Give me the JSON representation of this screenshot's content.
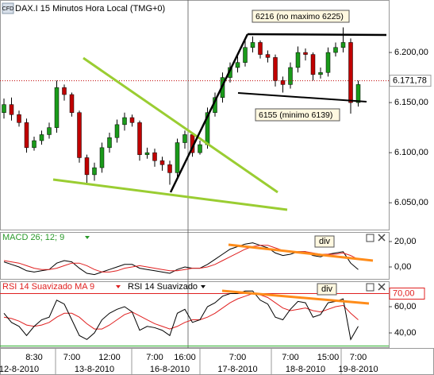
{
  "chart_data": [
    {
      "type": "candlestick",
      "logo": "CFD",
      "title": "DAX.I 15 Minutos Hora Local (TMG+0)",
      "categories": [
        null,
        null,
        null,
        null,
        "8:30",
        null,
        null,
        null,
        null,
        "7:00",
        null,
        null,
        null,
        null,
        "12:00",
        null,
        null,
        null,
        null,
        null,
        "7:00",
        null,
        null,
        null,
        "16:00",
        null,
        null,
        null,
        null,
        null,
        null,
        "7:00",
        null,
        null,
        null,
        null,
        null,
        null,
        "7:00",
        null,
        null,
        null,
        null,
        "15:00",
        null,
        null,
        null,
        "7:00"
      ],
      "dates": [
        null,
        null,
        "12-8-2010",
        null,
        null,
        null,
        null,
        null,
        null,
        null,
        null,
        null,
        "13-8-2010",
        null,
        null,
        null,
        null,
        null,
        null,
        null,
        null,
        null,
        "16-8-2010",
        null,
        null,
        null,
        null,
        null,
        null,
        null,
        null,
        "17-8-2010",
        null,
        null,
        null,
        null,
        null,
        null,
        null,
        null,
        "18-8-2010",
        null,
        null,
        null,
        null,
        null,
        null,
        "19-8-2010"
      ],
      "open": [
        6140,
        6148,
        6138,
        6130,
        6105,
        6112,
        6118,
        6125,
        6165,
        6158,
        6140,
        6095,
        6078,
        6085,
        6105,
        6115,
        6128,
        6135,
        6130,
        6098,
        6100,
        6092,
        6088,
        6080,
        6110,
        6118,
        6100,
        6108,
        6140,
        6155,
        6175,
        6185,
        6190,
        6205,
        6210,
        6198,
        6195,
        6172,
        6168,
        6185,
        6200,
        6198,
        6178,
        6180,
        6200,
        6205,
        6210,
        6150
      ],
      "high": [
        6154,
        6155,
        6142,
        6134,
        6116,
        6122,
        6130,
        6172,
        6168,
        6160,
        6142,
        6098,
        6090,
        6110,
        6120,
        6133,
        6140,
        6138,
        6132,
        6105,
        6104,
        6096,
        6092,
        6114,
        6122,
        6120,
        6112,
        6145,
        6160,
        6180,
        6190,
        6196,
        6212,
        6216,
        6212,
        6202,
        6198,
        6176,
        6190,
        6206,
        6204,
        6200,
        6185,
        6205,
        6210,
        6225,
        6214,
        6172
      ],
      "low": [
        6134,
        6132,
        6126,
        6100,
        6102,
        6108,
        6114,
        6120,
        6152,
        6136,
        6090,
        6070,
        6072,
        6080,
        6100,
        6110,
        6122,
        6126,
        6092,
        6094,
        6086,
        6082,
        6068,
        6076,
        6104,
        6096,
        6098,
        6104,
        6136,
        6150,
        6170,
        6180,
        6186,
        6200,
        6194,
        6190,
        6166,
        6160,
        6164,
        6180,
        6192,
        6172,
        6174,
        6176,
        6196,
        6200,
        6139,
        6146
      ],
      "close": [
        6148,
        6138,
        6130,
        6105,
        6112,
        6118,
        6125,
        6165,
        6158,
        6140,
        6095,
        6078,
        6085,
        6105,
        6115,
        6128,
        6135,
        6130,
        6098,
        6100,
        6092,
        6088,
        6080,
        6110,
        6118,
        6100,
        6108,
        6140,
        6155,
        6175,
        6185,
        6190,
        6205,
        6210,
        6198,
        6195,
        6172,
        6168,
        6185,
        6200,
        6198,
        6178,
        6180,
        6200,
        6205,
        6210,
        6150,
        6168
      ],
      "up_color": "#1a9a1a",
      "down_color": "#c00000",
      "ylim": [
        6024,
        6250
      ],
      "yticks": [
        {
          "value": 6050,
          "label": "6.050,00"
        },
        {
          "value": 6100,
          "label": "6.100,00"
        },
        {
          "value": 6150,
          "label": "6.150,00"
        },
        {
          "value": 6200,
          "label": "6.200,00"
        }
      ],
      "last_price": {
        "value": 6171.78,
        "label": "6.171,78"
      },
      "annotations": [
        "6216 (no maximo 6225)",
        "6155 (minimo 6139)"
      ]
    },
    {
      "type": "line",
      "title": "MACD 26; 12; 9",
      "annotation": "div",
      "series": [
        {
          "color": "#000000",
          "values": [
            4,
            2,
            0,
            -3,
            -4,
            -3,
            -2,
            3,
            5,
            4,
            -1,
            -5,
            -6,
            -4,
            -2,
            0,
            2,
            2,
            -1,
            -2,
            -3,
            -4,
            -5,
            -2,
            0,
            -1,
            -1,
            2,
            6,
            10,
            14,
            16,
            18,
            19,
            17,
            15,
            11,
            9,
            10,
            12,
            12,
            9,
            8,
            10,
            11,
            12,
            3,
            -2
          ]
        },
        {
          "color": "#e02020",
          "values": [
            5,
            4,
            3,
            1,
            -1,
            -2,
            -2,
            -1,
            1,
            3,
            3,
            1,
            -2,
            -4,
            -4,
            -3,
            -1,
            0,
            1,
            0,
            -1,
            -2,
            -3,
            -3,
            -2,
            -1,
            -1,
            0,
            2,
            5,
            8,
            11,
            14,
            16,
            17,
            17,
            15,
            13,
            12,
            12,
            12,
            11,
            10,
            10,
            10,
            11,
            9,
            6
          ]
        }
      ],
      "ylim": [
        -10,
        27.5
      ],
      "yticks": [
        {
          "value": 0,
          "label": "0,00"
        },
        {
          "value": 20,
          "label": "20,00"
        }
      ]
    },
    {
      "type": "line",
      "annotation": "div",
      "series": [
        {
          "name": "RSI 14 Suavizado MA 9",
          "color": "#e02020",
          "values": [
            52,
            51,
            49,
            46,
            45,
            46,
            48,
            52,
            55,
            55,
            52,
            47,
            43,
            43,
            46,
            50,
            54,
            56,
            53,
            50,
            47,
            45,
            43,
            45,
            48,
            50,
            50,
            52,
            55,
            59,
            63,
            66,
            68,
            70,
            69,
            67,
            63,
            59,
            57,
            58,
            59,
            57,
            56,
            58,
            60,
            61,
            55,
            50
          ]
        },
        {
          "name": "RSI 14 Suavizado",
          "color": "#000000",
          "values": [
            55,
            48,
            45,
            38,
            45,
            50,
            52,
            65,
            62,
            50,
            38,
            35,
            40,
            50,
            55,
            58,
            60,
            56,
            42,
            45,
            44,
            42,
            38,
            55,
            58,
            48,
            50,
            60,
            63,
            68,
            70,
            70,
            72,
            72,
            65,
            62,
            52,
            50,
            58,
            64,
            63,
            52,
            54,
            63,
            64,
            66,
            35,
            45
          ]
        }
      ],
      "ylim": [
        28.5,
        78.8
      ],
      "yticks": [
        {
          "value": 40,
          "label": "40,00"
        },
        {
          "value": 60,
          "label": "60,00"
        }
      ],
      "levels": [
        {
          "value": 70,
          "label": "70,00",
          "color": "#e02020"
        },
        {
          "value": 30,
          "color": "#30b030"
        }
      ]
    }
  ]
}
